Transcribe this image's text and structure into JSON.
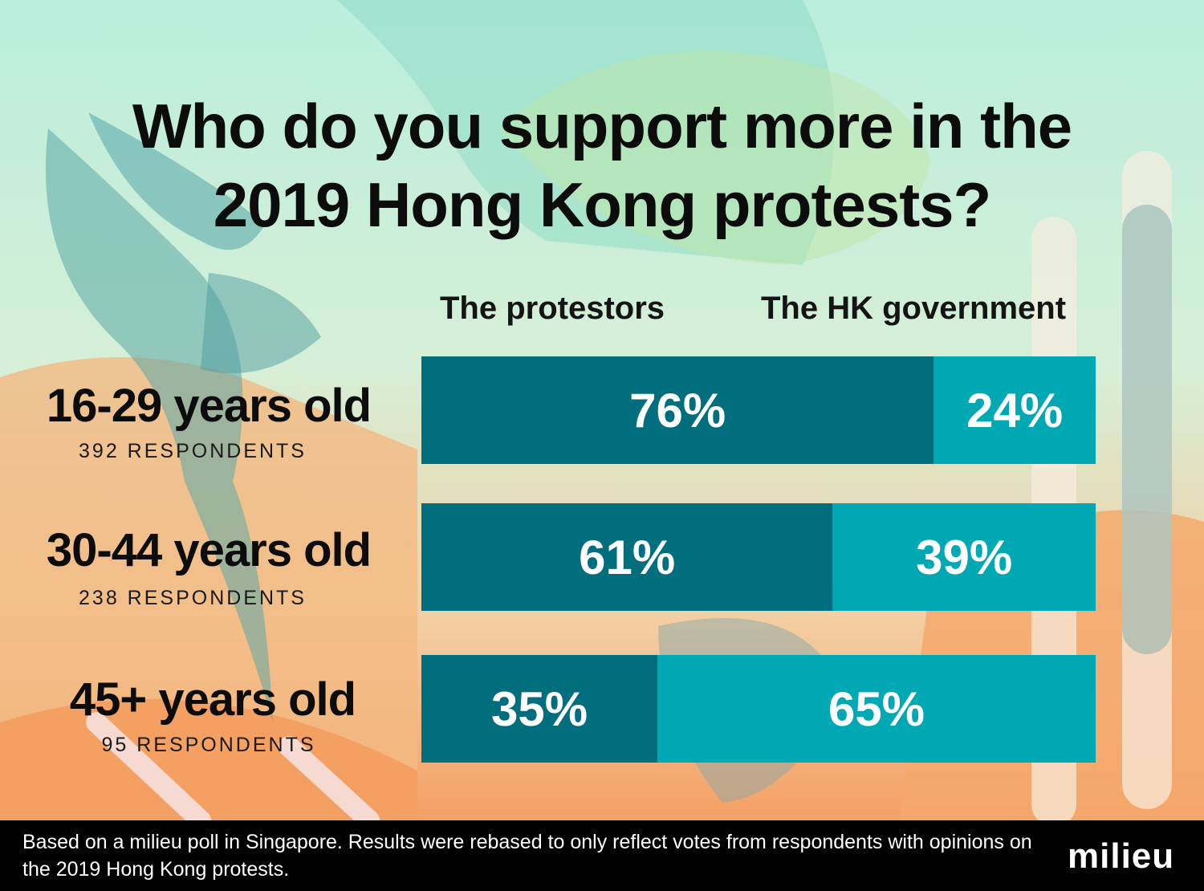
{
  "title": "Who do you support more in the\n2019 Hong Kong protests?",
  "chart_data": {
    "type": "bar",
    "orientation": "horizontal",
    "stacked": true,
    "unit": "%",
    "categories": [
      "16-29 years old",
      "30-44 years old",
      "45+ years old"
    ],
    "respondents": [
      "392 RESPONDENTS",
      "238 RESPONDENTS",
      "95 RESPONDENTS"
    ],
    "series": [
      {
        "name": "The protestors",
        "values": [
          76,
          61,
          35
        ],
        "color": "#006e7d"
      },
      {
        "name": "The HK government",
        "values": [
          24,
          39,
          65
        ],
        "color": "#00a8b4"
      }
    ],
    "xlim": [
      0,
      100
    ],
    "legend_position": "top"
  },
  "footer": {
    "note": "Based on a milieu poll in Singapore. Results were rebased to only reflect votes from respondents with opinions on the  2019 Hong Kong protests.",
    "brand": "milieu"
  },
  "colors": {
    "background_peach": "#f3c79b",
    "background_mint": "#c6efe1",
    "footer": "#000000",
    "protestors": "#006e7d",
    "government": "#00a8b4"
  }
}
